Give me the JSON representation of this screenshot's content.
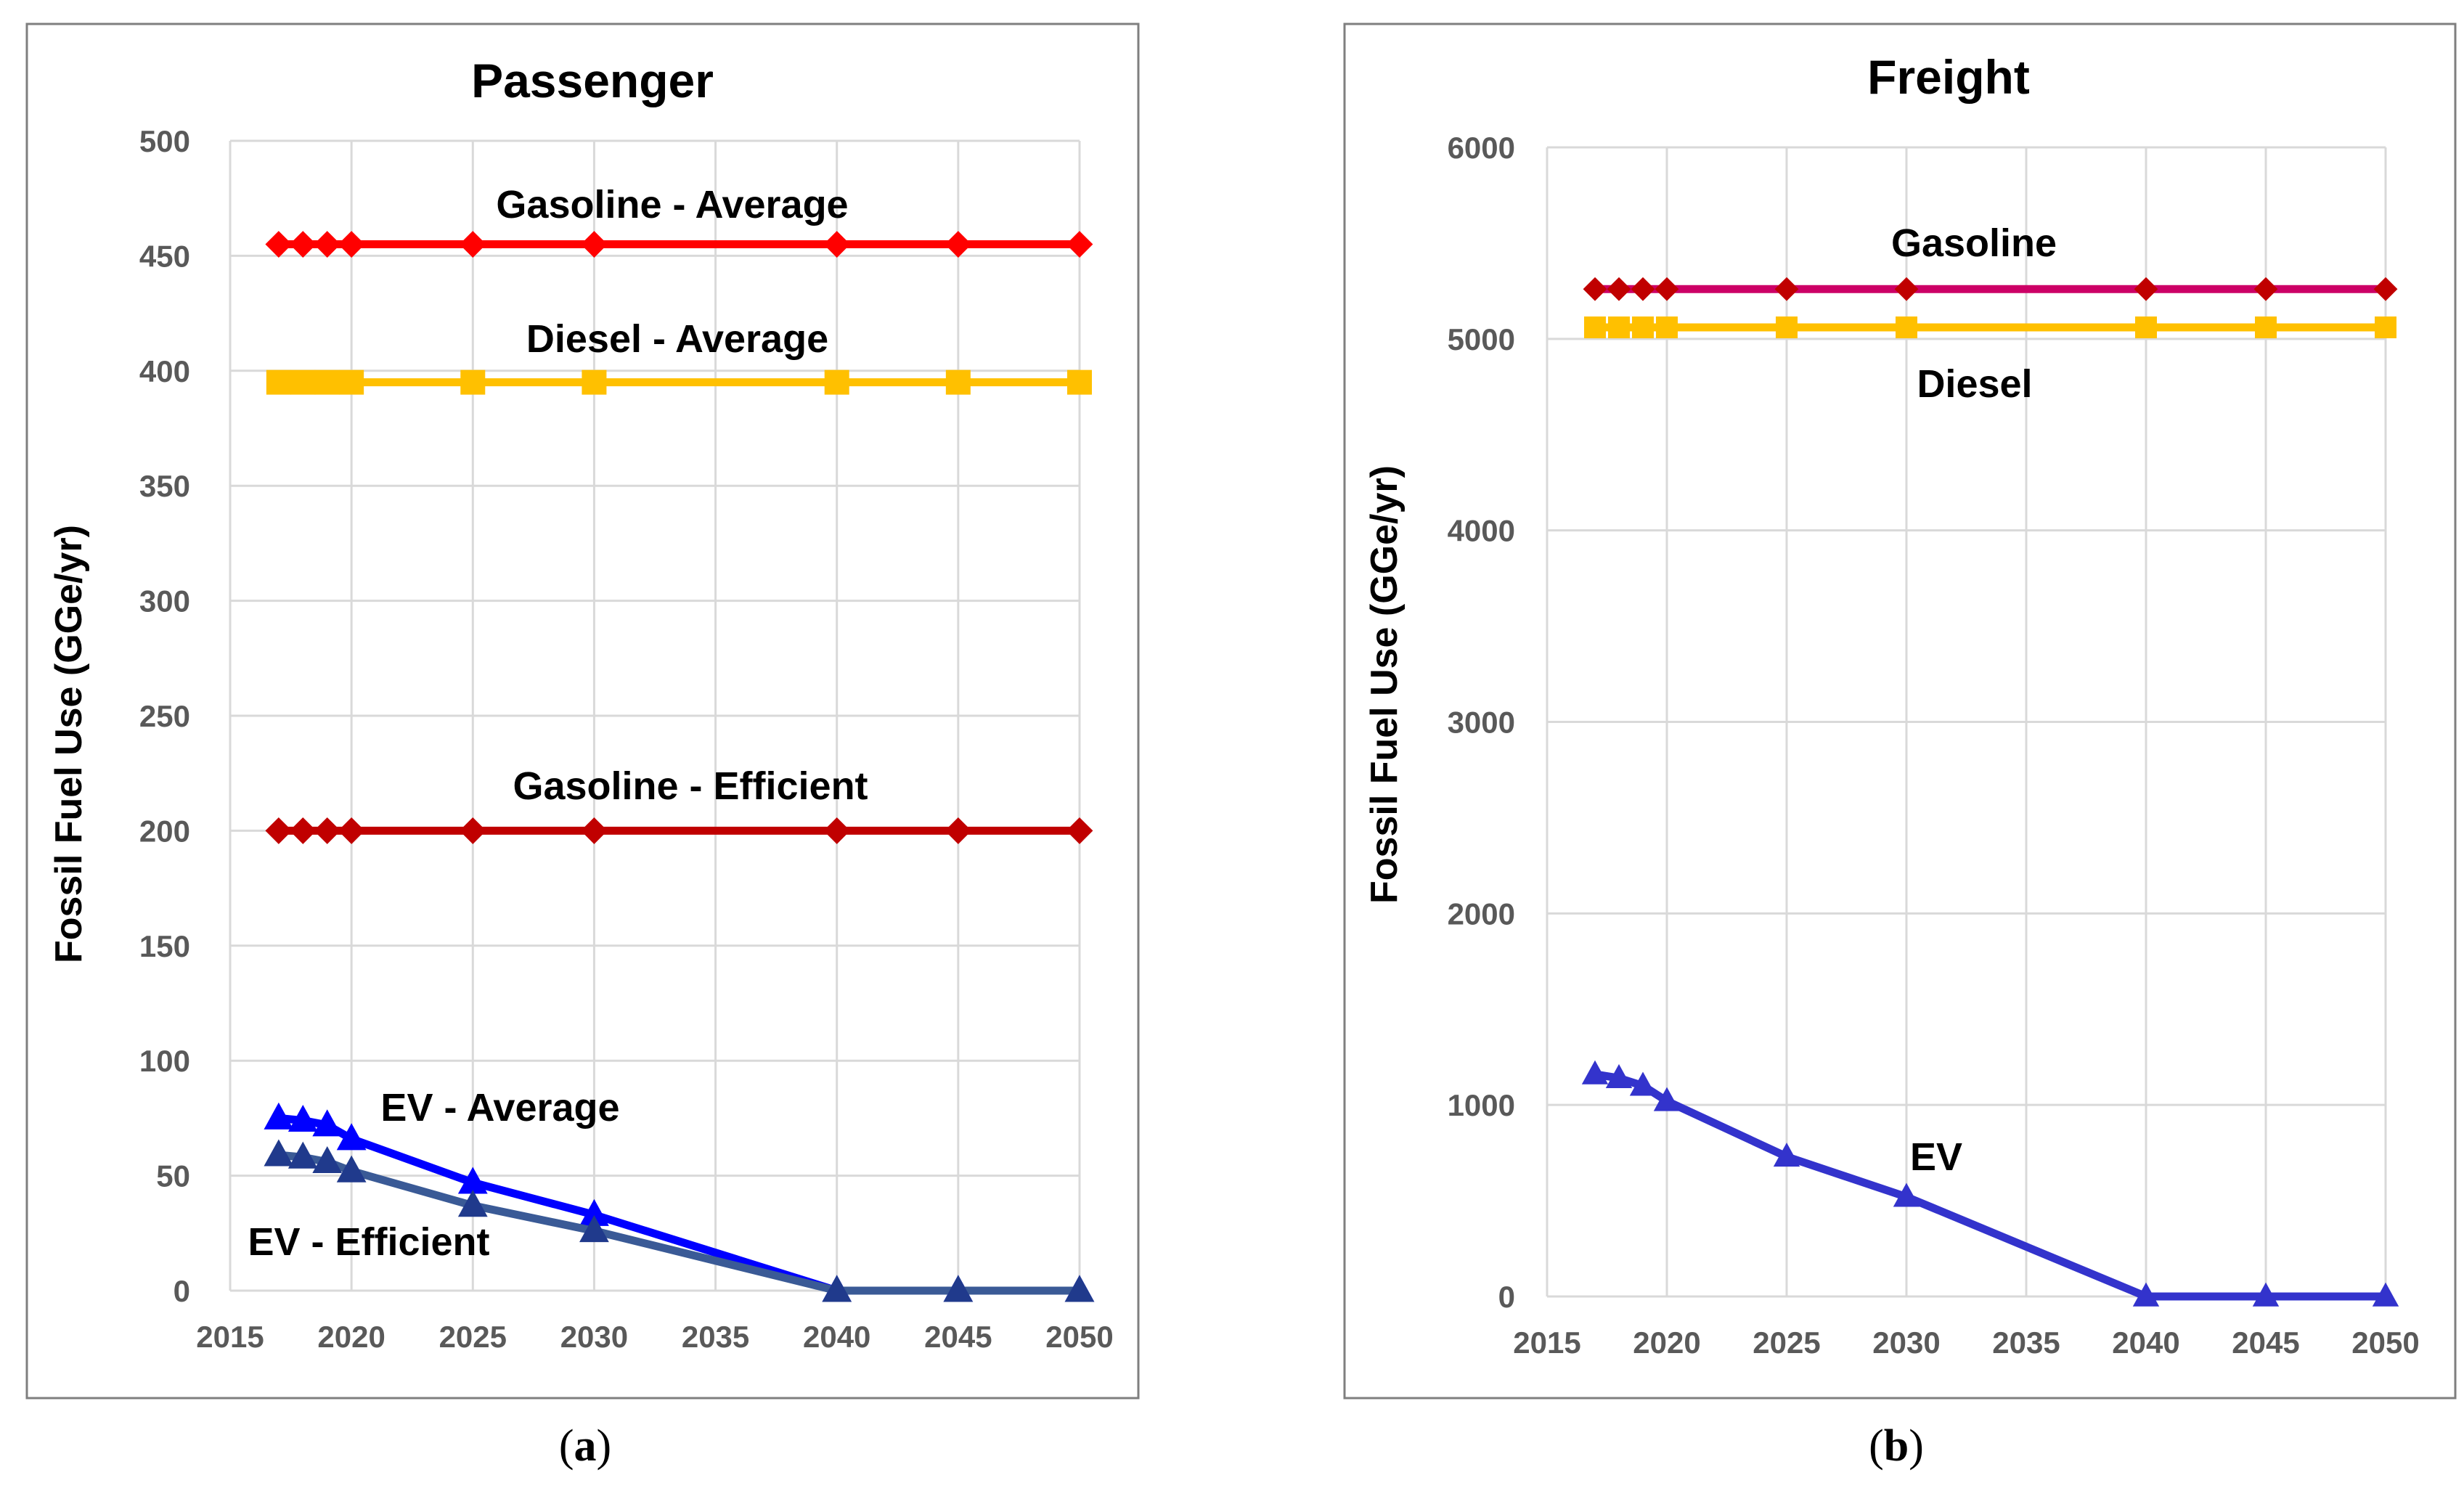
{
  "chart_data": [
    {
      "type": "line",
      "title": "Passenger",
      "panel_label": "a",
      "xlabel": "",
      "ylabel": "Fossil Fuel Use (GGe/yr)",
      "xlim": [
        2015,
        2050
      ],
      "ylim": [
        0,
        500
      ],
      "xticks": [
        "2015",
        "2020",
        "2025",
        "2030",
        "2035",
        "2040",
        "2045",
        "2050"
      ],
      "yticks": [
        "0",
        "50",
        "100",
        "150",
        "200",
        "250",
        "300",
        "350",
        "400",
        "450",
        "500"
      ],
      "grid": true,
      "x": [
        2017,
        2018,
        2019,
        2020,
        2025,
        2030,
        2040,
        2045,
        2050
      ],
      "series": [
        {
          "name": "Gasoline - Average",
          "color": "#ff0000",
          "marker": "diamond",
          "values": [
            455,
            455,
            455,
            455,
            455,
            455,
            455,
            455,
            455
          ]
        },
        {
          "name": "Diesel - Average",
          "color": "#ffc000",
          "marker": "square",
          "values": [
            395,
            395,
            395,
            395,
            395,
            395,
            395,
            395,
            395
          ]
        },
        {
          "name": "Gasoline - Efficient",
          "color": "#c00000",
          "marker": "diamond",
          "values": [
            200,
            200,
            200,
            200,
            200,
            200,
            200,
            200,
            200
          ]
        },
        {
          "name": "EV - Average",
          "color": "#0000ff",
          "marker": "triangle",
          "values": [
            75,
            74,
            72,
            66,
            47,
            33,
            0,
            0,
            0
          ]
        },
        {
          "name": "EV - Efficient",
          "color": "#203a8c",
          "line_color": "#3a5a96",
          "marker": "triangle",
          "values": [
            59,
            58,
            56,
            52,
            37,
            26,
            0,
            0,
            0
          ]
        }
      ],
      "annotations": [
        "Gasoline - Average",
        "Diesel - Average",
        "Gasoline - Efficient",
        "EV - Average",
        "EV - Efficient"
      ]
    },
    {
      "type": "line",
      "title": "Freight",
      "panel_label": "b",
      "xlabel": "",
      "ylabel": "Fossil Fuel Use (GGe/yr)",
      "xlim": [
        2015,
        2050
      ],
      "ylim": [
        0,
        6000
      ],
      "xticks": [
        "2015",
        "2020",
        "2025",
        "2030",
        "2035",
        "2040",
        "2045",
        "2050"
      ],
      "yticks": [
        "0",
        "1000",
        "2000",
        "3000",
        "4000",
        "5000",
        "6000"
      ],
      "grid": true,
      "x": [
        2017,
        2018,
        2019,
        2020,
        2025,
        2030,
        2040,
        2045,
        2050
      ],
      "series": [
        {
          "name": "Gasoline",
          "color": "#cc0066",
          "marker": "diamond",
          "marker_color": "#c00000",
          "values": [
            5260,
            5260,
            5260,
            5260,
            5260,
            5260,
            5260,
            5260,
            5260
          ]
        },
        {
          "name": "Diesel",
          "color": "#ffc000",
          "marker": "square",
          "values": [
            5060,
            5060,
            5060,
            5060,
            5060,
            5060,
            5060,
            5060,
            5060
          ]
        },
        {
          "name": "EV",
          "color": "#3333cc",
          "marker": "triangle",
          "values": [
            1160,
            1140,
            1100,
            1020,
            730,
            520,
            0,
            0,
            0
          ]
        }
      ],
      "annotations": [
        "Gasoline",
        "Diesel",
        "EV"
      ]
    }
  ]
}
